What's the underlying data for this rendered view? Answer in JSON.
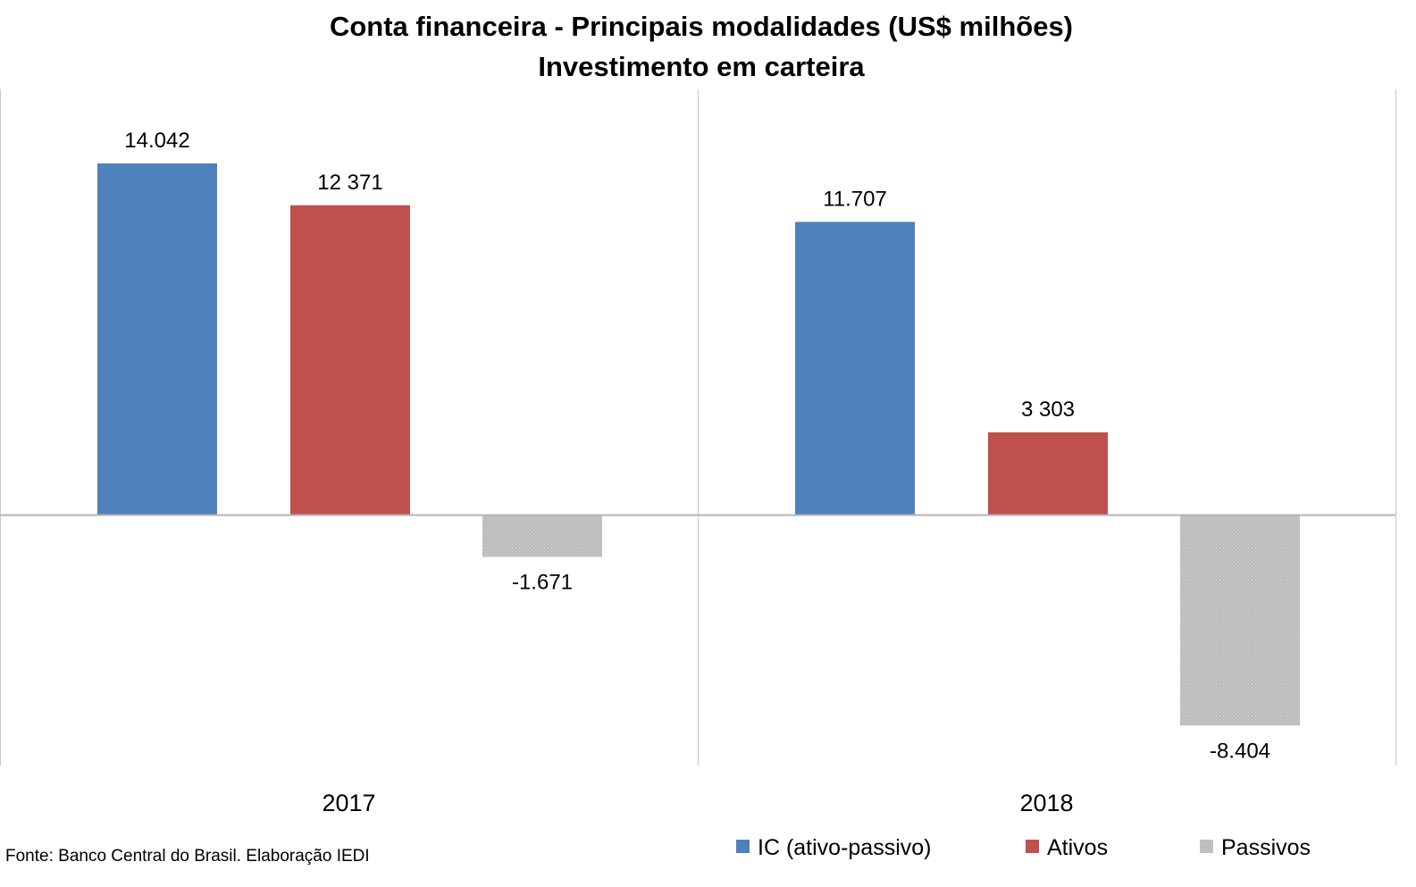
{
  "chart_data": {
    "type": "bar",
    "title": "Conta financeira - Principais modalidades (US$ milhões)",
    "subtitle": "Investimento em carteira",
    "categories": [
      "2017",
      "2018"
    ],
    "series": [
      {
        "name": "IC (ativo-passivo)",
        "color": "#4F81BD",
        "values": [
          14042,
          11707
        ],
        "labels": [
          "14.042",
          "11.707"
        ]
      },
      {
        "name": "Ativos",
        "color": "#C0504D",
        "values": [
          12371,
          3303
        ],
        "labels": [
          "12 371",
          "3 303"
        ]
      },
      {
        "name": "Passivos",
        "color": "#BFBFBF",
        "values": [
          -1671,
          -8404
        ],
        "labels": [
          "-1.671",
          "-8.404"
        ]
      }
    ],
    "xlabel": "",
    "ylabel": "",
    "ylim": [
      -10000,
      17000
    ],
    "grid": false,
    "legend_position": "bottom-right",
    "source": "Fonte: Banco Central do Brasil. Elaboração IEDI"
  }
}
